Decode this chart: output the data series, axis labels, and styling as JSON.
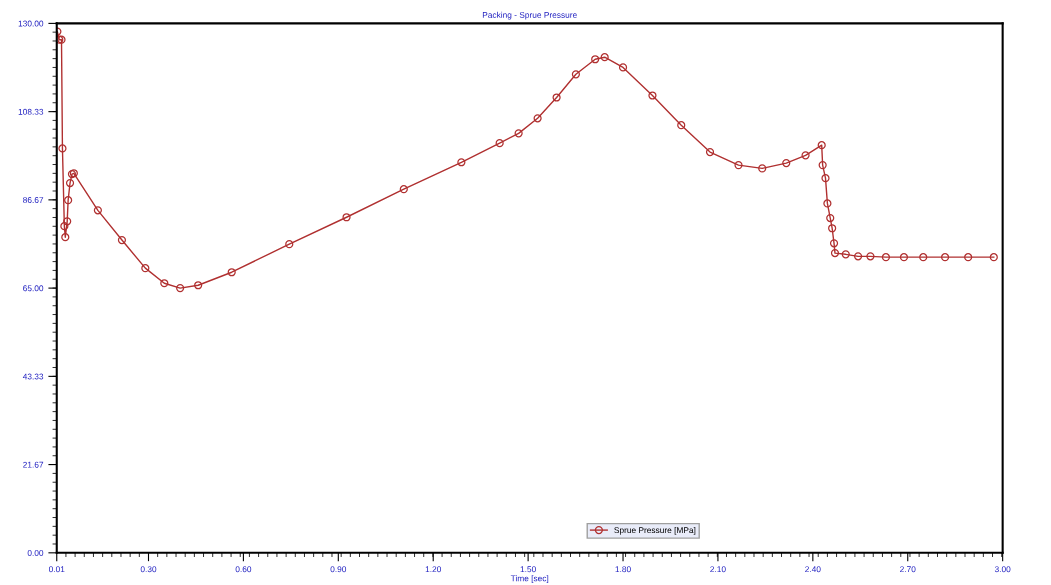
{
  "chart_data": {
    "type": "line",
    "title": "Packing - Sprue Pressure",
    "xlabel": "Time [sec]",
    "xlim": [
      0.01,
      3.0
    ],
    "xticks": [
      {
        "value": 0.01,
        "label": "0.01"
      },
      {
        "value": 0.3,
        "label": "0.30"
      },
      {
        "value": 0.6,
        "label": "0.60"
      },
      {
        "value": 0.9,
        "label": "0.90"
      },
      {
        "value": 1.2,
        "label": "1.20"
      },
      {
        "value": 1.5,
        "label": "1.50"
      },
      {
        "value": 1.8,
        "label": "1.80"
      },
      {
        "value": 2.1,
        "label": "2.10"
      },
      {
        "value": 2.4,
        "label": "2.40"
      },
      {
        "value": 2.7,
        "label": "2.70"
      },
      {
        "value": 3.0,
        "label": "3.00"
      }
    ],
    "ylim": [
      0,
      130
    ],
    "yticks": [
      {
        "value": 0,
        "label": "0.00"
      },
      {
        "value": 21.67,
        "label": "21.67"
      },
      {
        "value": 43.33,
        "label": "43.33"
      },
      {
        "value": 65,
        "label": "65.00"
      },
      {
        "value": 86.67,
        "label": "86.67"
      },
      {
        "value": 108.33,
        "label": "108.33"
      },
      {
        "value": 130,
        "label": "130.00"
      }
    ],
    "legend": "bottom",
    "marker": "circle",
    "line_style": "solid",
    "grid": false,
    "series": [
      {
        "name": "Sprue Pressure [MPa]",
        "color": "#b03030",
        "x": [
          0.012,
          0.018,
          0.025,
          0.028,
          0.034,
          0.037,
          0.043,
          0.046,
          0.052,
          0.058,
          0.064,
          0.14,
          0.216,
          0.29,
          0.35,
          0.4,
          0.457,
          0.563,
          0.745,
          0.926,
          1.107,
          1.289,
          1.41,
          1.47,
          1.53,
          1.59,
          1.651,
          1.712,
          1.742,
          1.8,
          1.893,
          1.984,
          2.075,
          2.165,
          2.24,
          2.316,
          2.377,
          2.428,
          2.431,
          2.44,
          2.446,
          2.455,
          2.461,
          2.467,
          2.47,
          2.504,
          2.543,
          2.582,
          2.631,
          2.688,
          2.749,
          2.818,
          2.891,
          2.972
        ],
        "values": [
          128,
          126,
          126,
          99.3,
          80.2,
          77.5,
          81.4,
          86.6,
          90.8,
          93.0,
          93.2,
          84.1,
          76.8,
          69.9,
          66.2,
          65.0,
          65.7,
          68.9,
          75.8,
          82.4,
          89.3,
          95.9,
          100.6,
          103.0,
          106.7,
          111.8,
          117.5,
          121.2,
          121.7,
          119.2,
          112.3,
          105.0,
          98.4,
          95.2,
          94.4,
          95.7,
          97.6,
          100.1,
          95.2,
          92.0,
          85.8,
          82.2,
          79.7,
          76.0,
          73.6,
          73.3,
          72.8,
          72.8,
          72.6,
          72.6,
          72.6,
          72.6,
          72.6,
          72.6
        ]
      }
    ]
  }
}
